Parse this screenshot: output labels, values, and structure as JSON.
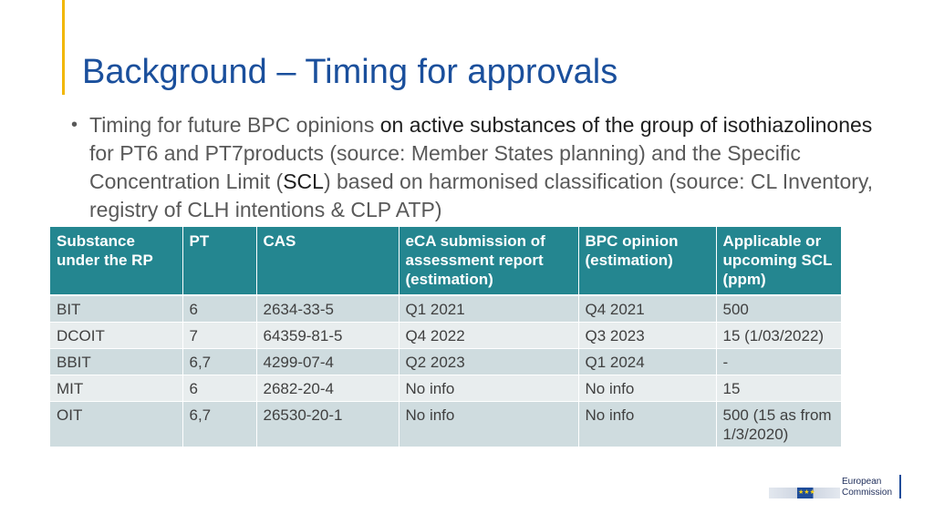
{
  "slide": {
    "title": "Background – Timing for approvals",
    "bullet": {
      "segments": [
        {
          "text": "Timing for future BPC opinions ",
          "tone": "grey"
        },
        {
          "text": "on active substances of the group of isothiazolinones",
          "tone": "dark"
        },
        {
          "text": " for PT6 and PT7products (source: Member States planning) and the Specific Concentration Limit (",
          "tone": "grey"
        },
        {
          "text": "SCL",
          "tone": "dark"
        },
        {
          "text": ") based on harmonised classification (source: CL Inventory, registry of CLH intentions & CLP ATP)",
          "tone": "grey"
        }
      ]
    }
  },
  "table": {
    "headers": [
      "Substance under the RP",
      "PT",
      "CAS",
      "eCA submission of assessment report (estimation)",
      "BPC opinion (estimation)",
      "Applicable or upcoming SCL (ppm)"
    ],
    "rows": [
      [
        "BIT",
        "6",
        "2634-33-5",
        "Q1 2021",
        "Q4 2021",
        "500"
      ],
      [
        "DCOIT",
        "7",
        "64359-81-5",
        "Q4 2022",
        "Q3 2023",
        "15 (1/03/2022)"
      ],
      [
        "BBIT",
        "6,7",
        "4299-07-4",
        "Q2 2023",
        "Q1 2024",
        "-"
      ],
      [
        "MIT",
        "6",
        "2682-20-4",
        "No info",
        "No info",
        "15"
      ],
      [
        "OIT",
        "6,7",
        "26530-20-1",
        "No info",
        "No info",
        "500 (15 as from 1/3/2020)"
      ]
    ]
  },
  "logo": {
    "line1": "European",
    "line2": "Commission"
  },
  "colors": {
    "title": "#1a4f9c",
    "accent": "#f2b705",
    "header_bg": "#248690",
    "row_odd": "#cfdcdf",
    "row_even": "#e8edee"
  }
}
